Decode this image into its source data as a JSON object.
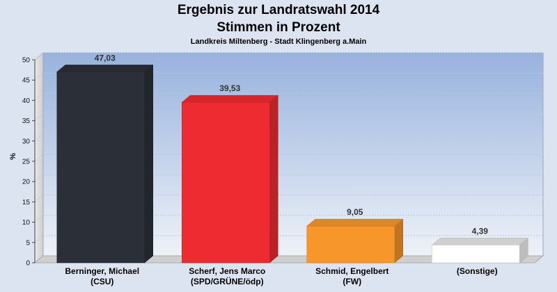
{
  "chart_data": {
    "type": "bar",
    "title": "Ergebnis zur Landratswahl 2014",
    "subtitle": "Stimmen in Prozent",
    "subtitle2": "Landkreis Miltenberg - Stadt Klingenberg a.Main",
    "ylabel": "%",
    "ylim": [
      0,
      50
    ],
    "yticks": [
      "0",
      "5",
      "10",
      "15",
      "20",
      "25",
      "30",
      "35",
      "40",
      "45",
      "50"
    ],
    "grid": true,
    "categories": [
      [
        "Berninger, Michael",
        "(CSU)"
      ],
      [
        "Scherf, Jens Marco",
        "(SPD/GRÜNE/ödp)"
      ],
      [
        "Schmid, Engelbert",
        "(FW)"
      ],
      [
        "(Sonstige)"
      ]
    ],
    "values": [
      47.03,
      39.53,
      9.05,
      4.39
    ],
    "value_labels": [
      "47,03",
      "39,53",
      "9,05",
      "4,39"
    ],
    "colors": [
      "#2b2f38",
      "#ee2b30",
      "#f7962a",
      "#ffffff"
    ]
  }
}
